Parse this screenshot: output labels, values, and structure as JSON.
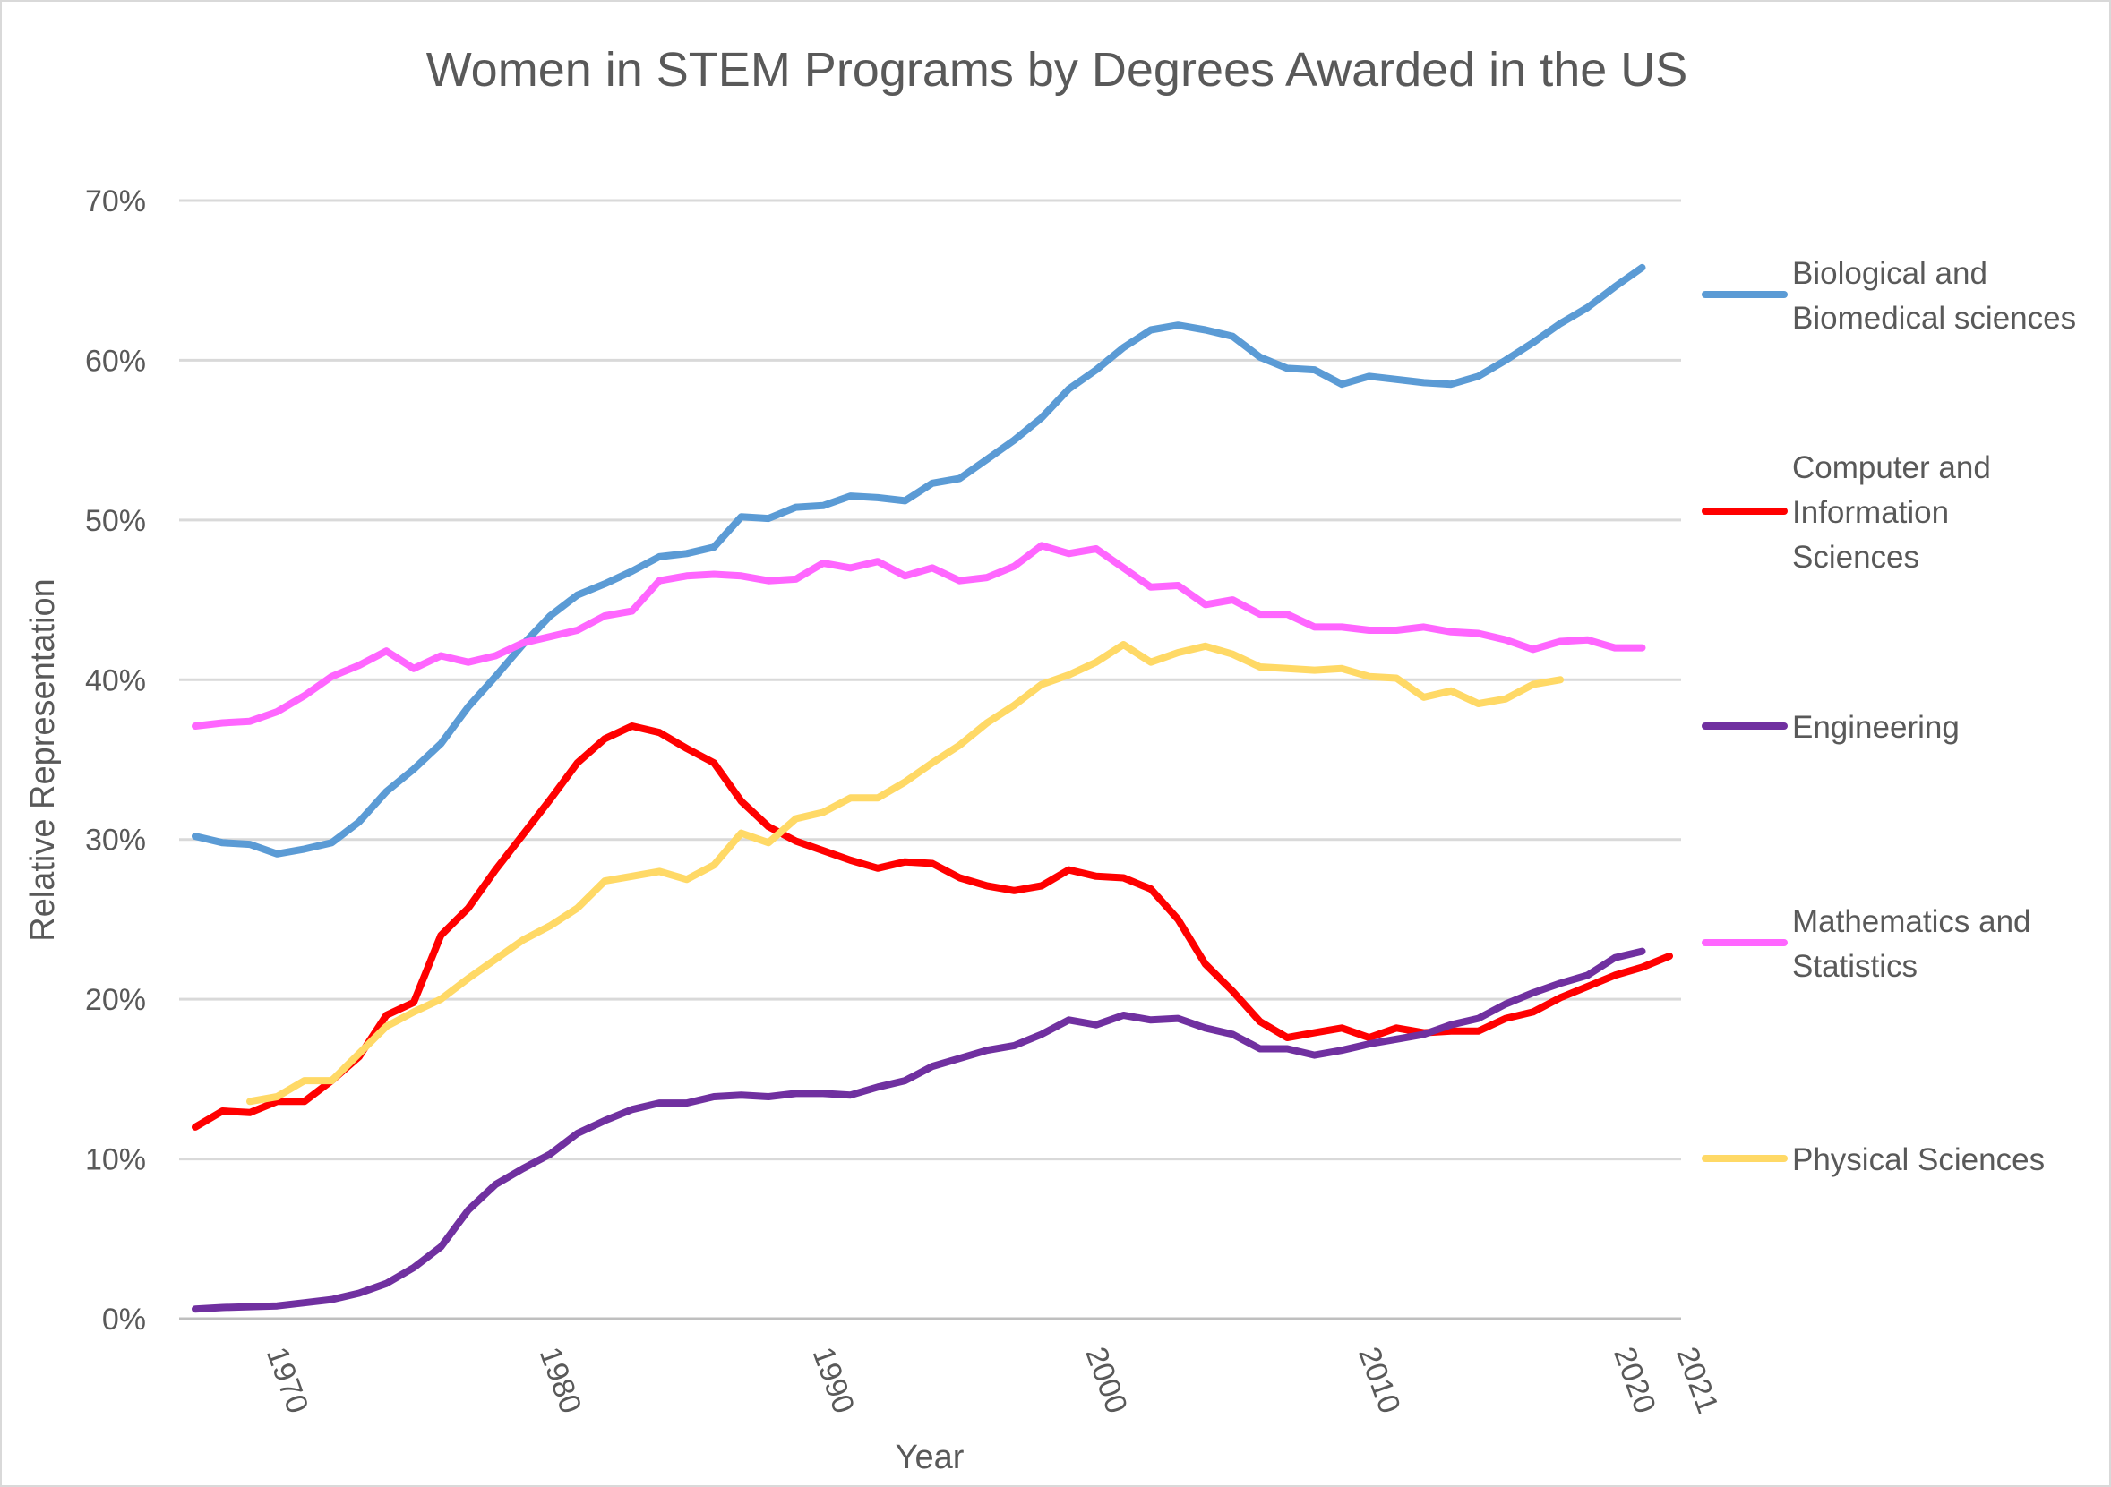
{
  "chart_data": {
    "type": "line",
    "title": "Women in STEM Programs by Degrees Awarded in the US",
    "xlabel": "Year",
    "ylabel": "Relative Representation",
    "ylim": [
      0,
      70
    ],
    "xlim": [
      1967,
      2021
    ],
    "y_ticks": [
      "0%",
      "10%",
      "20%",
      "30%",
      "40%",
      "50%",
      "60%",
      "70%"
    ],
    "x_ticks": [
      "1970",
      "1980",
      "1990",
      "2000",
      "2010",
      "2020",
      "2021"
    ],
    "grid": "horizontal",
    "legend_placement": "right",
    "series": [
      {
        "name": "Biological and Biomedical sciences",
        "legend_lines": [
          "Biological and",
          "Biomedical sciences"
        ],
        "color": "#5B9BD5",
        "start_year": 1967,
        "values": [
          30.2,
          29.8,
          29.7,
          29.1,
          29.4,
          29.8,
          31.1,
          33.0,
          34.4,
          36.0,
          38.3,
          40.2,
          42.2,
          44.0,
          45.3,
          46.0,
          46.8,
          47.7,
          47.9,
          48.3,
          50.2,
          50.1,
          50.8,
          50.9,
          51.5,
          51.4,
          51.2,
          52.3,
          52.6,
          53.8,
          55.0,
          56.4,
          58.2,
          59.4,
          60.8,
          61.9,
          62.2,
          61.9,
          61.5,
          60.2,
          59.5,
          59.4,
          58.5,
          59.0,
          58.8,
          58.6,
          58.5,
          59.0,
          60.0,
          61.1,
          62.3,
          63.3,
          64.6,
          65.8
        ]
      },
      {
        "name": "Computer and Information Sciences",
        "legend_lines": [
          "Computer and",
          "Information",
          "Sciences"
        ],
        "color": "#FF0000",
        "start_year": 1967,
        "values": [
          12.0,
          13.0,
          12.9,
          13.6,
          13.6,
          14.9,
          16.4,
          19.0,
          19.8,
          24.0,
          25.7,
          28.1,
          30.3,
          32.5,
          34.8,
          36.3,
          37.1,
          36.7,
          35.7,
          34.8,
          32.4,
          30.8,
          29.9,
          29.3,
          28.7,
          28.2,
          28.6,
          28.5,
          27.6,
          27.1,
          26.8,
          27.1,
          28.1,
          27.7,
          27.6,
          26.9,
          25.0,
          22.2,
          20.5,
          18.6,
          17.6,
          17.9,
          18.2,
          17.6,
          18.2,
          17.9,
          18.0,
          18.0,
          18.8,
          19.2,
          20.1,
          20.8,
          21.5,
          22.0,
          22.7
        ]
      },
      {
        "name": "Engineering",
        "legend_lines": [
          "Engineering"
        ],
        "color": "#7030A0",
        "start_year": 1967,
        "values": [
          0.6,
          0.7,
          0.75,
          0.8,
          1.0,
          1.2,
          1.6,
          2.2,
          3.2,
          4.5,
          6.8,
          8.4,
          9.4,
          10.3,
          11.6,
          12.4,
          13.1,
          13.5,
          13.5,
          13.9,
          14.0,
          13.9,
          14.1,
          14.1,
          14.0,
          14.5,
          14.9,
          15.8,
          16.3,
          16.8,
          17.1,
          17.8,
          18.7,
          18.4,
          19.0,
          18.7,
          18.8,
          18.2,
          17.8,
          16.9,
          16.9,
          16.5,
          16.8,
          17.2,
          17.5,
          17.8,
          18.4,
          18.8,
          19.7,
          20.4,
          21.0,
          21.5,
          22.6,
          23.0
        ]
      },
      {
        "name": "Mathematics and Statistics",
        "legend_lines": [
          "Mathematics and",
          "Statistics"
        ],
        "color": "#FF66FF",
        "start_year": 1967,
        "values": [
          37.1,
          37.3,
          37.4,
          38.0,
          39.0,
          40.2,
          40.9,
          41.8,
          40.7,
          41.5,
          41.1,
          41.5,
          42.3,
          42.7,
          43.1,
          44.0,
          44.3,
          46.2,
          46.5,
          46.6,
          46.5,
          46.2,
          46.3,
          47.3,
          47.0,
          47.4,
          46.5,
          47.0,
          46.2,
          46.4,
          47.1,
          48.4,
          47.9,
          48.2,
          47.0,
          45.8,
          45.9,
          44.7,
          45.0,
          44.1,
          44.1,
          43.3,
          43.3,
          43.1,
          43.1,
          43.3,
          43.0,
          42.9,
          42.5,
          41.9,
          42.4,
          42.5,
          42.0,
          42.0
        ]
      },
      {
        "name": "Physical Sciences",
        "legend_lines": [
          "Physical Sciences"
        ],
        "color": "#FFD966",
        "start_year": 1969,
        "values": [
          13.6,
          13.9,
          14.9,
          14.9,
          16.6,
          18.3,
          19.2,
          20.0,
          21.3,
          22.5,
          23.7,
          24.6,
          25.7,
          27.4,
          27.7,
          28.0,
          27.5,
          28.4,
          30.4,
          29.8,
          31.3,
          31.7,
          32.6,
          32.6,
          33.6,
          34.8,
          35.9,
          37.3,
          38.4,
          39.7,
          40.3,
          41.1,
          42.2,
          41.1,
          41.7,
          42.1,
          41.6,
          40.8,
          40.7,
          40.6,
          40.7,
          40.2,
          40.1,
          38.9,
          39.3,
          38.5,
          38.8,
          39.7,
          40.0
        ]
      }
    ]
  }
}
